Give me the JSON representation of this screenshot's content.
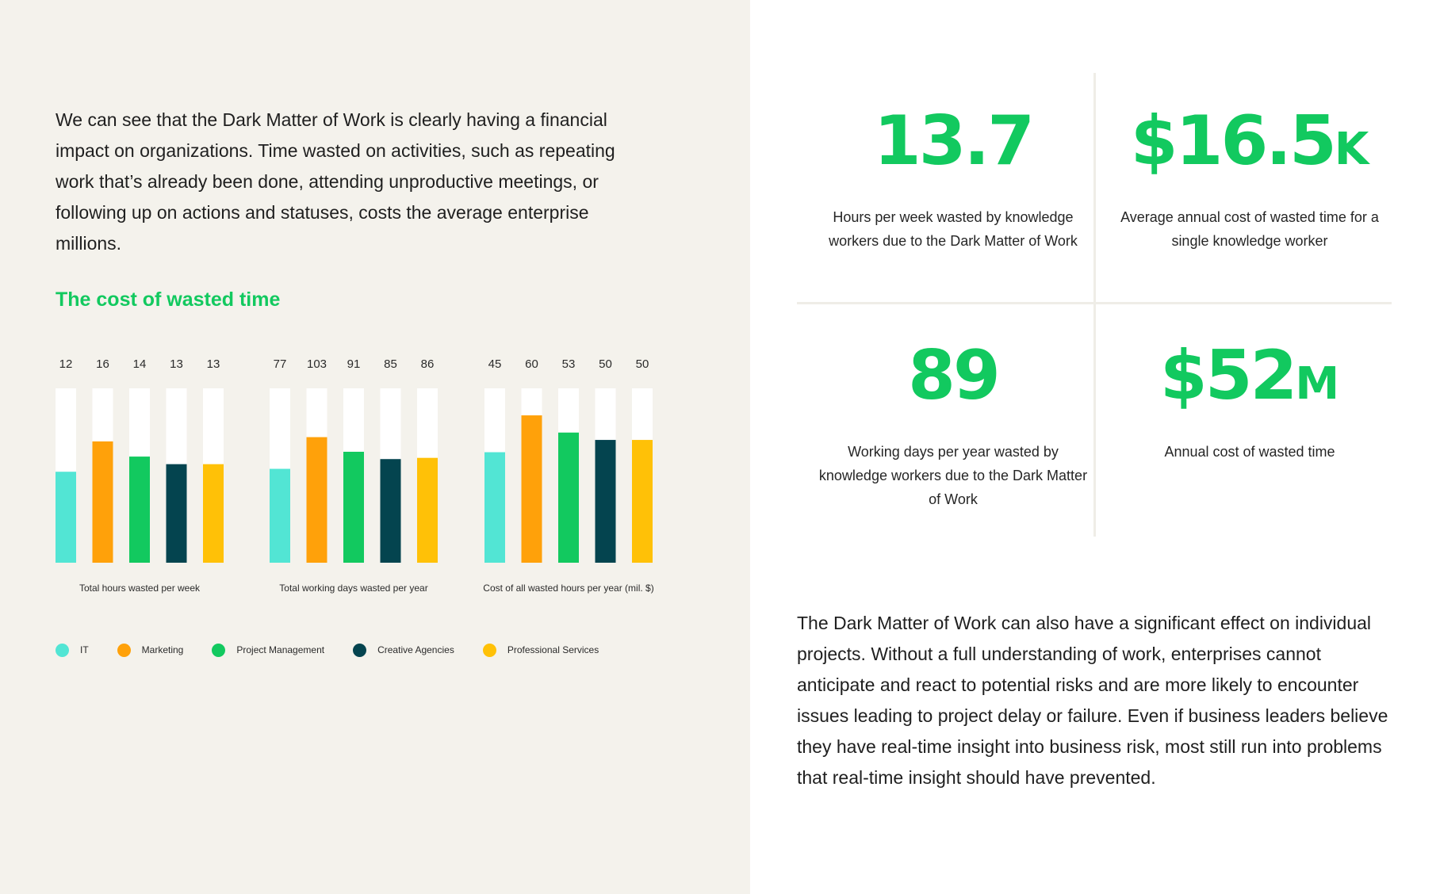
{
  "intro_text": "We can see that the Dark Matter of Work is clearly having a financial impact on organizations. Time wasted on activities, such as repeating work that’s already been done, attending unproductive meetings, or following up on actions and statuses, costs the average enterprise millions.",
  "chart_title": "The cost of wasted time",
  "colors": {
    "accent": "#12c95f",
    "left_background": "#f4f2ec",
    "track": "#ffffff",
    "series": [
      "#52e5d4",
      "#ffa10a",
      "#12c95f",
      "#04444f",
      "#ffc107"
    ]
  },
  "chart_data": [
    {
      "type": "bar",
      "title": "Total hours wasted per week",
      "categories": [
        "IT",
        "Marketing",
        "Project Management",
        "Creative Agencies",
        "Professional Services"
      ],
      "values": [
        12,
        16,
        14,
        13,
        13
      ],
      "ylim": [
        0,
        23
      ]
    },
    {
      "type": "bar",
      "title": "Total working days wasted per year",
      "categories": [
        "IT",
        "Marketing",
        "Project Management",
        "Creative Agencies",
        "Professional Services"
      ],
      "values": [
        77,
        103,
        91,
        85,
        86
      ],
      "ylim": [
        0,
        143
      ]
    },
    {
      "type": "bar",
      "title": "Cost of all wasted hours per year (mil. $)",
      "categories": [
        "IT",
        "Marketing",
        "Project Management",
        "Creative Agencies",
        "Professional Services"
      ],
      "values": [
        45,
        60,
        53,
        50,
        50
      ],
      "ylim": [
        0,
        71
      ]
    }
  ],
  "legend": [
    {
      "label": "IT",
      "color": "#52e5d4"
    },
    {
      "label": "Marketing",
      "color": "#ffa10a"
    },
    {
      "label": "Project Management",
      "color": "#12c95f"
    },
    {
      "label": "Creative Agencies",
      "color": "#04444f"
    },
    {
      "label": "Professional Services",
      "color": "#ffc107"
    }
  ],
  "stats": [
    {
      "value": "13.7",
      "suffix": "",
      "description": "Hours per week wasted by knowledge workers due to the Dark Matter of Work"
    },
    {
      "value": "$16.5",
      "suffix": "K",
      "description": "Average annual cost of wasted time for a single knowledge worker"
    },
    {
      "value": "89",
      "suffix": "",
      "description": "Working days per year wasted by knowledge workers due to the Dark Matter of Work"
    },
    {
      "value": "$52",
      "suffix": "M",
      "description": "Annual cost of wasted time"
    }
  ],
  "outro_text": "The Dark Matter of Work can also have a significant effect on individual projects. Without a full understanding of work, enterprises cannot anticipate and react to potential risks and are more likely to encounter issues leading to project delay or failure. Even if business leaders believe they have real-time insight into business risk, most still run into problems that real-time insight should have prevented."
}
